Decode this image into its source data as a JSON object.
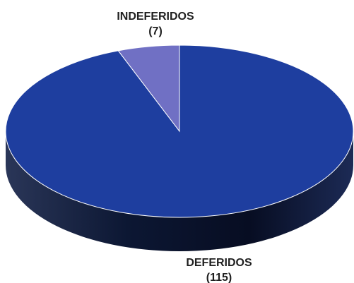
{
  "chart_data": {
    "type": "pie",
    "style": "3d",
    "title": "",
    "slices": [
      {
        "label": "DEFERIDOS",
        "value": 115,
        "value_text": "(115)",
        "color": "#1e3e9f"
      },
      {
        "label": "INDEFERIDOS",
        "value": 7,
        "value_text": "(7)",
        "color": "#7070c4"
      }
    ],
    "legend": "none"
  }
}
